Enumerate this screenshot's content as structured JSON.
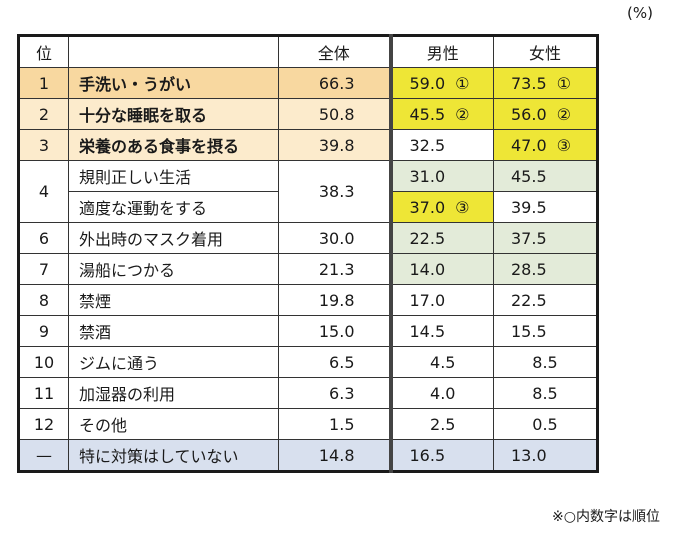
{
  "unit_label": "(%)",
  "footnote": "※○内数字は順位",
  "headers": {
    "rank": "位",
    "label": "",
    "total": "全体",
    "male": "男性",
    "female": "女性"
  },
  "rows": [
    {
      "rank": "1",
      "label": "手洗い・うがい",
      "total": "66.3",
      "male": "59.0",
      "male_rank": "①",
      "female": "73.5",
      "female_rank": "①"
    },
    {
      "rank": "2",
      "label": "十分な睡眠を取る",
      "total": "50.8",
      "male": "45.5",
      "male_rank": "②",
      "female": "56.0",
      "female_rank": "②"
    },
    {
      "rank": "3",
      "label": "栄養のある食事を摂る",
      "total": "39.8",
      "male": "32.5",
      "male_rank": "",
      "female": "47.0",
      "female_rank": "③"
    },
    {
      "rank": "4",
      "label": "規則正しい生活",
      "total": "38.3",
      "male": "31.0",
      "male_rank": "",
      "female": "45.5",
      "female_rank": ""
    },
    {
      "rank": "",
      "label": "適度な運動をする",
      "total": "38.3",
      "male": "37.0",
      "male_rank": "③",
      "female": "39.5",
      "female_rank": ""
    },
    {
      "rank": "6",
      "label": "外出時のマスク着用",
      "total": "30.0",
      "male": "22.5",
      "male_rank": "",
      "female": "37.5",
      "female_rank": ""
    },
    {
      "rank": "7",
      "label": "湯船につかる",
      "total": "21.3",
      "male": "14.0",
      "male_rank": "",
      "female": "28.5",
      "female_rank": ""
    },
    {
      "rank": "8",
      "label": "禁煙",
      "total": "19.8",
      "male": "17.0",
      "male_rank": "",
      "female": "22.5",
      "female_rank": ""
    },
    {
      "rank": "9",
      "label": "禁酒",
      "total": "15.0",
      "male": "14.5",
      "male_rank": "",
      "female": "15.5",
      "female_rank": ""
    },
    {
      "rank": "10",
      "label": "ジムに通う",
      "total": "6.5",
      "male": "4.5",
      "male_rank": "",
      "female": "8.5",
      "female_rank": ""
    },
    {
      "rank": "11",
      "label": "加湿器の利用",
      "total": "6.3",
      "male": "4.0",
      "male_rank": "",
      "female": "8.5",
      "female_rank": ""
    },
    {
      "rank": "12",
      "label": "その他",
      "total": "1.5",
      "male": "2.5",
      "male_rank": "",
      "female": "0.5",
      "female_rank": ""
    },
    {
      "rank": "—",
      "label": "特に対策はしていない",
      "total": "14.8",
      "male": "16.5",
      "male_rank": "",
      "female": "13.0",
      "female_rank": ""
    }
  ],
  "colors": {
    "rank1_bg": "#f8d8a0",
    "rank23_bg": "#fcebcc",
    "top3_highlight": "#eee636",
    "female_higher_bg": "#e3ebd9",
    "no_measure_bg": "#d8e0ee"
  }
}
